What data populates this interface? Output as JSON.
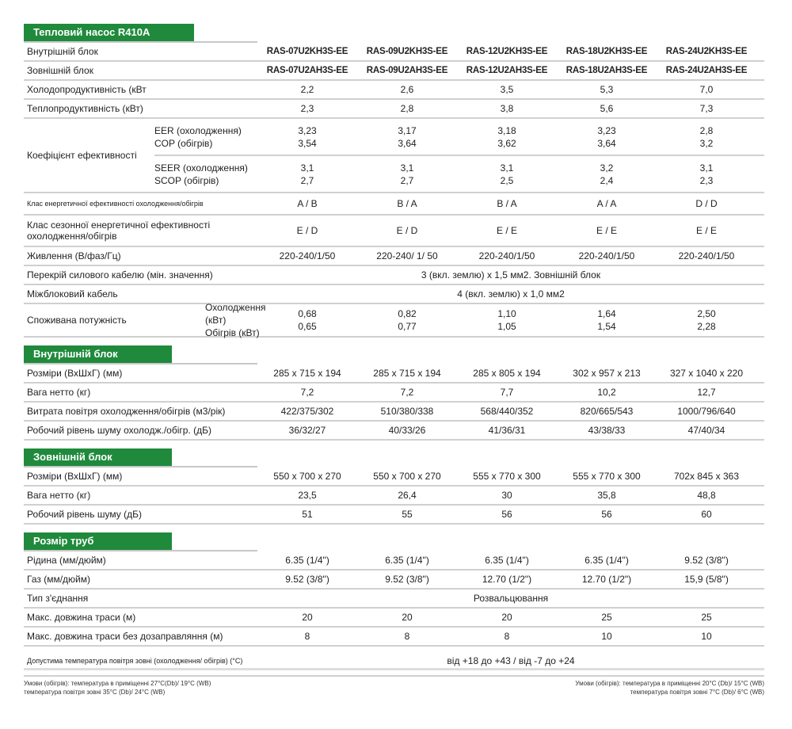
{
  "title": "Тепловий насос  R410A",
  "colors": {
    "accent": "#1f8a3c",
    "rule": "#d0d0d0"
  },
  "general": [
    {
      "type": "models",
      "label": "Внутрішній блок",
      "values": [
        "RAS-07U2KH3S-EE",
        "RAS-09U2KH3S-EE",
        "RAS-12U2KH3S-EE",
        "RAS-18U2KH3S-EE",
        "RAS-24U2KH3S-EE"
      ]
    },
    {
      "type": "models",
      "label": "Зовнішній блок",
      "values": [
        "RAS-07U2AH3S-EE",
        "RAS-09U2AH3S-EE",
        "RAS-12U2AH3S-EE",
        "RAS-18U2AH3S-EE",
        "RAS-24U2AH3S-EE"
      ]
    },
    {
      "label": "Холодопродуктивність (кВт",
      "values": [
        "2,2",
        "2,6",
        "3,5",
        "5,3",
        "7,0"
      ]
    },
    {
      "label": "Теплопродуктивність  (кВт)",
      "values": [
        "2,3",
        "2,8",
        "3,8",
        "5,6",
        "7,3"
      ]
    }
  ],
  "efficiency": {
    "label": "Коефіцієнт ефективності",
    "subrows": [
      {
        "sub": [
          "EER (охолодження)",
          "COP (обігрів)"
        ],
        "values": [
          [
            "3,23",
            "3,54"
          ],
          [
            "3,17",
            "3,64"
          ],
          [
            "3,18",
            "3,62"
          ],
          [
            "3,23",
            "3,64"
          ],
          [
            "2,8",
            "3,2"
          ]
        ]
      },
      {
        "sub": [
          "SEER (охолодження)",
          "SCOP (обігрів)"
        ],
        "values": [
          [
            "3,1",
            "2,7"
          ],
          [
            "3,1",
            "2,7"
          ],
          [
            "3,1",
            "2,5"
          ],
          [
            "3,2",
            "2,4"
          ],
          [
            "3,1",
            "2,3"
          ]
        ]
      }
    ]
  },
  "general2": [
    {
      "label": "Клас енергетичної ефективності охолодження/обігрів",
      "small": true,
      "values": [
        "A / B",
        "B / A",
        "B / A",
        "A / A",
        "D / D"
      ]
    },
    {
      "label": "Клас сезонної енергетичної ефективності охолодження/обігрів",
      "values": [
        "E / D",
        "E / D",
        "E / E",
        "E / E",
        "E / E"
      ]
    },
    {
      "label": "Живлення (В/фаз/Гц)",
      "values": [
        "220-240/1/50",
        "220-240/ 1/ 50",
        "220-240/1/50",
        "220-240/1/50",
        "220-240/1/50"
      ]
    },
    {
      "label": "Перекрій силового кабелю (мін. значення)",
      "span": "3 (вкл. землю) x 1,5 мм2. Зовнішній блок"
    },
    {
      "label": "Міжблоковий кабель",
      "span": "4 (вкл. землю) x 1,0 мм2"
    }
  ],
  "power": {
    "label": "Споживана потужність",
    "sub": [
      "Охолодження (кВт)",
      "Обігрів (кВт)"
    ],
    "values": [
      [
        "0,68",
        "0,65"
      ],
      [
        "0,82",
        "0,77"
      ],
      [
        "1,10",
        "1,05"
      ],
      [
        "1,64",
        "1,54"
      ],
      [
        "2,50",
        "2,28"
      ]
    ]
  },
  "indoor": {
    "title": "Внутрішній блок",
    "rows": [
      {
        "label": "Розміри (ВхШхГ) (мм)",
        "values": [
          "285 x 715 x 194",
          "285 x 715 x 194",
          "285 x 805 x 194",
          "302 x 957 x 213",
          "327 x 1040 x 220"
        ]
      },
      {
        "label": "Вага нетто (кг)",
        "values": [
          "7,2",
          "7,2",
          "7,7",
          "10,2",
          "12,7"
        ]
      },
      {
        "label": "Витрата повітря охолодження/обігрів (м3/рік)",
        "values": [
          "422/375/302",
          "510/380/338",
          "568/440/352",
          "820/665/543",
          "1000/796/640"
        ]
      },
      {
        "label": "Робочий рівень шуму охолодж./обігр. (дБ)",
        "values": [
          "36/32/27",
          "40/33/26",
          "41/36/31",
          "43/38/33",
          "47/40/34"
        ]
      }
    ]
  },
  "outdoor": {
    "title": "Зовнішній блок",
    "rows": [
      {
        "label": "Розміри (ВхШхГ) (мм)",
        "values": [
          "550 x 700 x 270",
          "550 x 700 x 270",
          "555 x 770 x 300",
          "555 x 770 x 300",
          "702x 845 x 363"
        ]
      },
      {
        "label": "Вага нетто (кг)",
        "values": [
          "23,5",
          "26,4",
          "30",
          "35,8",
          "48,8"
        ]
      },
      {
        "label": "Робочий рівень шуму (дБ)",
        "values": [
          "51",
          "55",
          "56",
          "56",
          "60"
        ]
      }
    ]
  },
  "pipes": {
    "title": "Розмір труб",
    "rows": [
      {
        "label": "Рідина (мм/дюйм)",
        "values": [
          "6.35 (1/4\")",
          "6.35 (1/4\")",
          "6.35 (1/4\")",
          "6.35 (1/4\")",
          "9.52 (3/8\")"
        ]
      },
      {
        "label": "Газ (мм/дюйм)",
        "values": [
          "9.52 (3/8\")",
          "9.52 (3/8\")",
          "12.70 (1/2\")",
          "12.70 (1/2\")",
          "15,9 (5/8\")"
        ]
      },
      {
        "label": "Тип з'єднання",
        "span": "Розвальцювання"
      },
      {
        "label": "Макс. довжина траси (м)",
        "values": [
          "20",
          "20",
          "20",
          "25",
          "25"
        ]
      },
      {
        "label": "Макс. довжина траси без дозаправляння (м)",
        "values": [
          "8",
          "8",
          "8",
          "10",
          "10"
        ]
      },
      {
        "label": "Допустима температура повітря зовні (охолодження/ обігрів) (°C)",
        "small": true,
        "tall": true,
        "span": "від +18 до +43 / від -7 до +24"
      }
    ]
  },
  "notes": {
    "left": [
      "Умови (обігрів): температура в приміщенні  27°C(Db)/ 19°C (WB)",
      "температура повітря зовні 35°C (Db)/ 24°C (WB)"
    ],
    "right": [
      "Умови (обігрів): температура в приміщенні 20°C (Db)/ 15°C (WB)",
      "температура повітря зовні 7°C (Db)/ 6°C (WB)"
    ]
  }
}
